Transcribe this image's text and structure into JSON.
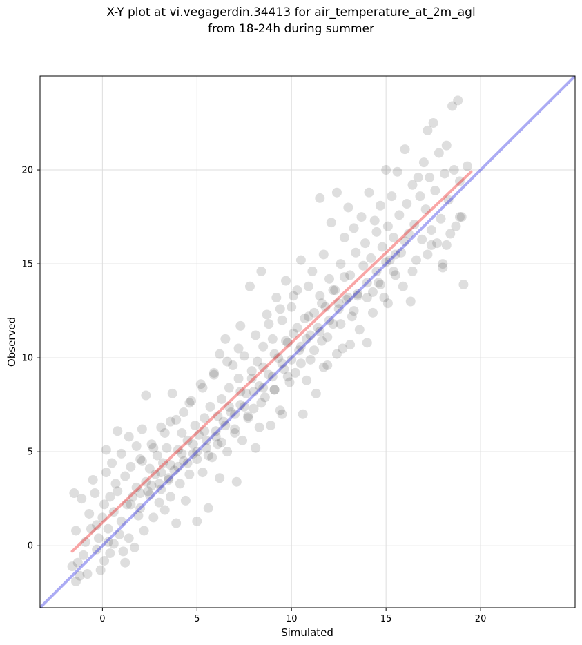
{
  "chart_data": {
    "type": "scatter",
    "title_lines": [
      "X-Y plot at vi.vegagerdin.34413 for air_temperature_at_2m_agl",
      "from 18-24h during summer"
    ],
    "xlabel": "Simulated",
    "ylabel": "Observed",
    "xlim": [
      -3.3,
      25.0
    ],
    "ylim": [
      -3.3,
      25.0
    ],
    "xticks": [
      0,
      5,
      10,
      15,
      20
    ],
    "yticks": [
      0,
      5,
      10,
      15,
      20
    ],
    "grid": true,
    "point_color": "#000000",
    "point_alpha": 0.08,
    "identity_line": {
      "color": "#0000dd",
      "alpha": 0.33,
      "x": [
        -3.3,
        25.0
      ],
      "y": [
        -3.3,
        25.0
      ]
    },
    "fit_line": {
      "color": "#ee0000",
      "alpha": 0.35,
      "x": [
        -1.6,
        19.5
      ],
      "y": [
        -0.3,
        19.9
      ]
    },
    "points": [
      [
        -1.5,
        2.8
      ],
      [
        -1.4,
        0.8
      ],
      [
        -1.6,
        -1.1
      ],
      [
        -1.4,
        -1.9
      ],
      [
        -1.2,
        -1.6
      ],
      [
        -1.3,
        -0.9
      ],
      [
        -1.0,
        -0.5
      ],
      [
        -0.8,
        -1.5
      ],
      [
        -1.1,
        2.5
      ],
      [
        -0.9,
        0.2
      ],
      [
        -0.7,
        1.7
      ],
      [
        -0.6,
        0.9
      ],
      [
        -0.5,
        3.5
      ],
      [
        -0.4,
        2.8
      ],
      [
        -0.3,
        1.1
      ],
      [
        -0.3,
        -0.2
      ],
      [
        -0.2,
        0.4
      ],
      [
        -0.1,
        -1.3
      ],
      [
        0.0,
        1.5
      ],
      [
        0.1,
        2.2
      ],
      [
        0.1,
        -0.8
      ],
      [
        0.2,
        5.1
      ],
      [
        0.2,
        3.9
      ],
      [
        0.3,
        0.9
      ],
      [
        0.4,
        2.6
      ],
      [
        0.4,
        -0.4
      ],
      [
        0.5,
        4.4
      ],
      [
        0.6,
        1.8
      ],
      [
        0.6,
        0.1
      ],
      [
        0.7,
        3.3
      ],
      [
        0.8,
        6.1
      ],
      [
        0.8,
        2.9
      ],
      [
        0.9,
        0.6
      ],
      [
        1.0,
        4.9
      ],
      [
        1.0,
        1.3
      ],
      [
        1.1,
        -0.3
      ],
      [
        1.2,
        3.7
      ],
      [
        1.3,
        2.2
      ],
      [
        1.4,
        0.4
      ],
      [
        1.4,
        5.8
      ],
      [
        1.5,
        4.2
      ],
      [
        1.6,
        2.6
      ],
      [
        1.7,
        -0.1
      ],
      [
        1.8,
        3.1
      ],
      [
        1.8,
        5.3
      ],
      [
        1.9,
        1.6
      ],
      [
        2.0,
        4.6
      ],
      [
        2.0,
        2.0
      ],
      [
        2.1,
        6.2
      ],
      [
        2.2,
        0.8
      ],
      [
        2.3,
        3.4
      ],
      [
        2.3,
        8.0
      ],
      [
        2.4,
        2.9
      ],
      [
        2.5,
        4.1
      ],
      [
        2.6,
        5.4
      ],
      [
        2.7,
        1.5
      ],
      [
        2.8,
        3.8
      ],
      [
        2.9,
        4.8
      ],
      [
        3.0,
        2.3
      ],
      [
        3.1,
        6.3
      ],
      [
        3.1,
        3.0
      ],
      [
        3.2,
        4.4
      ],
      [
        3.3,
        1.9
      ],
      [
        3.4,
        5.2
      ],
      [
        3.5,
        3.6
      ],
      [
        3.6,
        6.6
      ],
      [
        3.6,
        2.6
      ],
      [
        3.7,
        8.1
      ],
      [
        3.8,
        4.0
      ],
      [
        3.9,
        1.2
      ],
      [
        4.0,
        5.1
      ],
      [
        4.1,
        3.3
      ],
      [
        4.2,
        6.0
      ],
      [
        4.3,
        7.1
      ],
      [
        4.3,
        4.5
      ],
      [
        4.4,
        2.4
      ],
      [
        4.5,
        5.6
      ],
      [
        4.6,
        3.8
      ],
      [
        4.7,
        7.7
      ],
      [
        4.8,
        4.9
      ],
      [
        4.9,
        6.4
      ],
      [
        5.0,
        1.3
      ],
      [
        5.0,
        4.6
      ],
      [
        5.1,
        5.9
      ],
      [
        5.2,
        8.6
      ],
      [
        5.3,
        3.9
      ],
      [
        5.4,
        6.8
      ],
      [
        5.5,
        5.2
      ],
      [
        5.6,
        2.0
      ],
      [
        5.7,
        7.4
      ],
      [
        5.8,
        4.7
      ],
      [
        5.9,
        9.2
      ],
      [
        6.0,
        6.1
      ],
      [
        6.1,
        5.4
      ],
      [
        6.2,
        10.2
      ],
      [
        6.2,
        3.6
      ],
      [
        6.3,
        7.8
      ],
      [
        6.4,
        6.6
      ],
      [
        6.5,
        11.0
      ],
      [
        6.6,
        5.0
      ],
      [
        6.7,
        8.4
      ],
      [
        6.8,
        7.1
      ],
      [
        6.9,
        9.6
      ],
      [
        7.0,
        6.0
      ],
      [
        7.1,
        3.4
      ],
      [
        7.2,
        8.9
      ],
      [
        7.3,
        7.5
      ],
      [
        7.3,
        11.7
      ],
      [
        7.4,
        5.6
      ],
      [
        7.5,
        10.1
      ],
      [
        7.6,
        8.1
      ],
      [
        7.7,
        6.8
      ],
      [
        7.8,
        13.8
      ],
      [
        7.9,
        9.3
      ],
      [
        8.0,
        7.3
      ],
      [
        8.1,
        11.2
      ],
      [
        8.1,
        5.2
      ],
      [
        8.2,
        9.8
      ],
      [
        8.3,
        8.5
      ],
      [
        8.4,
        14.6
      ],
      [
        8.5,
        10.6
      ],
      [
        8.6,
        7.9
      ],
      [
        8.7,
        12.3
      ],
      [
        8.8,
        9.1
      ],
      [
        8.9,
        6.4
      ],
      [
        9.0,
        11.0
      ],
      [
        9.1,
        8.3
      ],
      [
        9.2,
        13.2
      ],
      [
        9.3,
        10.0
      ],
      [
        9.4,
        7.2
      ],
      [
        9.5,
        12.0
      ],
      [
        9.6,
        9.4
      ],
      [
        9.7,
        14.1
      ],
      [
        9.8,
        10.8
      ],
      [
        9.9,
        8.7
      ],
      [
        10.0,
        12.7
      ],
      [
        10.1,
        11.3
      ],
      [
        10.2,
        9.2
      ],
      [
        10.3,
        13.6
      ],
      [
        10.4,
        10.4
      ],
      [
        10.5,
        15.2
      ],
      [
        10.6,
        7.0
      ],
      [
        10.7,
        12.1
      ],
      [
        10.8,
        11.0
      ],
      [
        10.9,
        13.8
      ],
      [
        11.0,
        9.9
      ],
      [
        11.1,
        14.6
      ],
      [
        11.2,
        12.4
      ],
      [
        11.3,
        8.1
      ],
      [
        11.4,
        11.6
      ],
      [
        11.5,
        18.5
      ],
      [
        11.5,
        13.3
      ],
      [
        11.6,
        10.9
      ],
      [
        11.7,
        15.5
      ],
      [
        11.8,
        12.7
      ],
      [
        11.9,
        9.6
      ],
      [
        12.0,
        14.2
      ],
      [
        12.1,
        17.2
      ],
      [
        12.2,
        11.8
      ],
      [
        12.3,
        13.6
      ],
      [
        12.4,
        18.8
      ],
      [
        12.5,
        12.9
      ],
      [
        12.6,
        15.0
      ],
      [
        12.7,
        10.5
      ],
      [
        12.8,
        16.4
      ],
      [
        12.9,
        13.1
      ],
      [
        13.0,
        18.0
      ],
      [
        13.1,
        14.4
      ],
      [
        13.2,
        12.2
      ],
      [
        13.3,
        16.9
      ],
      [
        13.4,
        15.6
      ],
      [
        13.5,
        13.3
      ],
      [
        13.6,
        11.5
      ],
      [
        13.7,
        17.5
      ],
      [
        13.8,
        14.9
      ],
      [
        13.9,
        16.1
      ],
      [
        14.0,
        10.8
      ],
      [
        14.1,
        18.8
      ],
      [
        14.2,
        15.3
      ],
      [
        14.3,
        13.5
      ],
      [
        14.4,
        17.3
      ],
      [
        14.5,
        16.7
      ],
      [
        14.6,
        14.0
      ],
      [
        14.7,
        18.1
      ],
      [
        14.8,
        15.9
      ],
      [
        14.9,
        13.2
      ],
      [
        15.0,
        20.0
      ],
      [
        15.1,
        17.0
      ],
      [
        15.2,
        15.2
      ],
      [
        15.3,
        18.6
      ],
      [
        15.4,
        16.4
      ],
      [
        15.5,
        14.4
      ],
      [
        15.6,
        19.9
      ],
      [
        15.7,
        17.6
      ],
      [
        15.8,
        15.6
      ],
      [
        16.0,
        21.1
      ],
      [
        16.1,
        18.2
      ],
      [
        16.2,
        16.6
      ],
      [
        16.3,
        13.0
      ],
      [
        16.4,
        19.2
      ],
      [
        16.5,
        17.1
      ],
      [
        16.6,
        15.2
      ],
      [
        16.8,
        18.6
      ],
      [
        16.9,
        16.3
      ],
      [
        17.0,
        20.4
      ],
      [
        17.1,
        17.9
      ],
      [
        17.2,
        15.5
      ],
      [
        17.2,
        22.1
      ],
      [
        17.3,
        19.6
      ],
      [
        17.4,
        16.8
      ],
      [
        17.6,
        18.9
      ],
      [
        17.7,
        16.1
      ],
      [
        17.8,
        20.9
      ],
      [
        17.9,
        17.4
      ],
      [
        18.0,
        15.0
      ],
      [
        18.1,
        19.8
      ],
      [
        18.2,
        21.3
      ],
      [
        18.3,
        18.4
      ],
      [
        18.4,
        16.6
      ],
      [
        18.5,
        23.4
      ],
      [
        18.6,
        20.0
      ],
      [
        18.7,
        17.0
      ],
      [
        18.8,
        23.7
      ],
      [
        18.9,
        19.4
      ],
      [
        19.0,
        17.5
      ],
      [
        19.1,
        13.9
      ],
      [
        19.3,
        20.2
      ],
      [
        18.0,
        14.8
      ],
      [
        17.5,
        22.5
      ],
      [
        16.7,
        19.6
      ],
      [
        1.2,
        -0.9
      ],
      [
        0.3,
        0.2
      ],
      [
        2.5,
        2.7
      ],
      [
        3.0,
        3.3
      ],
      [
        3.5,
        3.5
      ],
      [
        4.0,
        4.2
      ],
      [
        4.5,
        4.4
      ],
      [
        5.0,
        5.0
      ],
      [
        5.5,
        5.6
      ],
      [
        6.0,
        5.8
      ],
      [
        6.5,
        6.4
      ],
      [
        7.0,
        7.0
      ],
      [
        7.5,
        7.4
      ],
      [
        8.0,
        8.2
      ],
      [
        8.5,
        8.4
      ],
      [
        9.0,
        9.0
      ],
      [
        9.5,
        9.7
      ],
      [
        10.0,
        9.9
      ],
      [
        10.5,
        10.6
      ],
      [
        11.0,
        11.2
      ],
      [
        11.5,
        11.4
      ],
      [
        12.0,
        12.0
      ],
      [
        12.5,
        12.6
      ],
      [
        13.0,
        13.2
      ],
      [
        13.5,
        13.4
      ],
      [
        14.0,
        14.0
      ],
      [
        14.5,
        14.6
      ],
      [
        15.0,
        15.1
      ],
      [
        15.5,
        15.5
      ],
      [
        16.0,
        16.2
      ],
      [
        4.2,
        4.9
      ],
      [
        4.8,
        5.4
      ],
      [
        5.4,
        6.1
      ],
      [
        6.1,
        6.9
      ],
      [
        6.7,
        7.4
      ],
      [
        7.3,
        8.2
      ],
      [
        7.9,
        8.9
      ],
      [
        8.5,
        9.5
      ],
      [
        9.1,
        10.2
      ],
      [
        9.7,
        10.9
      ],
      [
        10.3,
        11.6
      ],
      [
        10.9,
        12.2
      ],
      [
        11.6,
        12.9
      ],
      [
        12.2,
        13.6
      ],
      [
        12.8,
        14.3
      ],
      [
        3.6,
        4.3
      ],
      [
        3.1,
        3.9
      ],
      [
        2.6,
        3.2
      ],
      [
        2.0,
        2.8
      ],
      [
        1.5,
        2.2
      ],
      [
        5.6,
        4.8
      ],
      [
        6.3,
        5.5
      ],
      [
        7.0,
        6.2
      ],
      [
        7.7,
        6.9
      ],
      [
        8.4,
        7.6
      ],
      [
        9.1,
        8.3
      ],
      [
        9.8,
        9.0
      ],
      [
        10.5,
        9.7
      ],
      [
        11.2,
        10.4
      ],
      [
        11.9,
        11.1
      ],
      [
        12.6,
        11.8
      ],
      [
        13.3,
        12.5
      ],
      [
        14.0,
        13.2
      ],
      [
        14.7,
        13.9
      ],
      [
        15.4,
        14.6
      ],
      [
        8.8,
        11.8
      ],
      [
        9.4,
        12.6
      ],
      [
        10.1,
        13.3
      ],
      [
        7.2,
        10.5
      ],
      [
        6.6,
        9.8
      ],
      [
        5.9,
        9.1
      ],
      [
        5.3,
        8.4
      ],
      [
        4.6,
        7.6
      ],
      [
        3.9,
        6.7
      ],
      [
        3.3,
        6.0
      ],
      [
        2.7,
        5.2
      ],
      [
        2.1,
        4.5
      ],
      [
        8.3,
        6.3
      ],
      [
        9.5,
        7.0
      ],
      [
        10.8,
        8.8
      ],
      [
        11.7,
        9.5
      ],
      [
        12.4,
        10.2
      ],
      [
        13.1,
        10.7
      ],
      [
        14.3,
        12.4
      ],
      [
        15.1,
        12.9
      ],
      [
        15.9,
        13.8
      ],
      [
        16.4,
        14.6
      ],
      [
        17.4,
        16.0
      ],
      [
        18.2,
        16.0
      ],
      [
        18.9,
        17.5
      ]
    ]
  }
}
